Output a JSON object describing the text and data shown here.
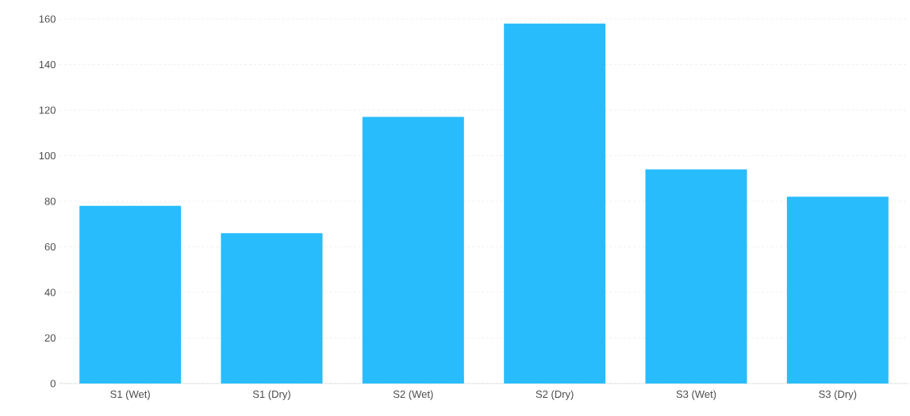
{
  "chart_data": {
    "type": "bar",
    "categories": [
      "S1 (Wet)",
      "S1 (Dry)",
      "S2 (Wet)",
      "S2 (Dry)",
      "S3 (Wet)",
      "S3 (Dry)"
    ],
    "values": [
      78,
      66,
      117,
      158,
      94,
      82
    ],
    "color": "#29bcfd",
    "ylim": [
      0,
      160
    ],
    "yticks": [
      0,
      20,
      40,
      60,
      80,
      100,
      120,
      140,
      160
    ],
    "grid": "y"
  }
}
